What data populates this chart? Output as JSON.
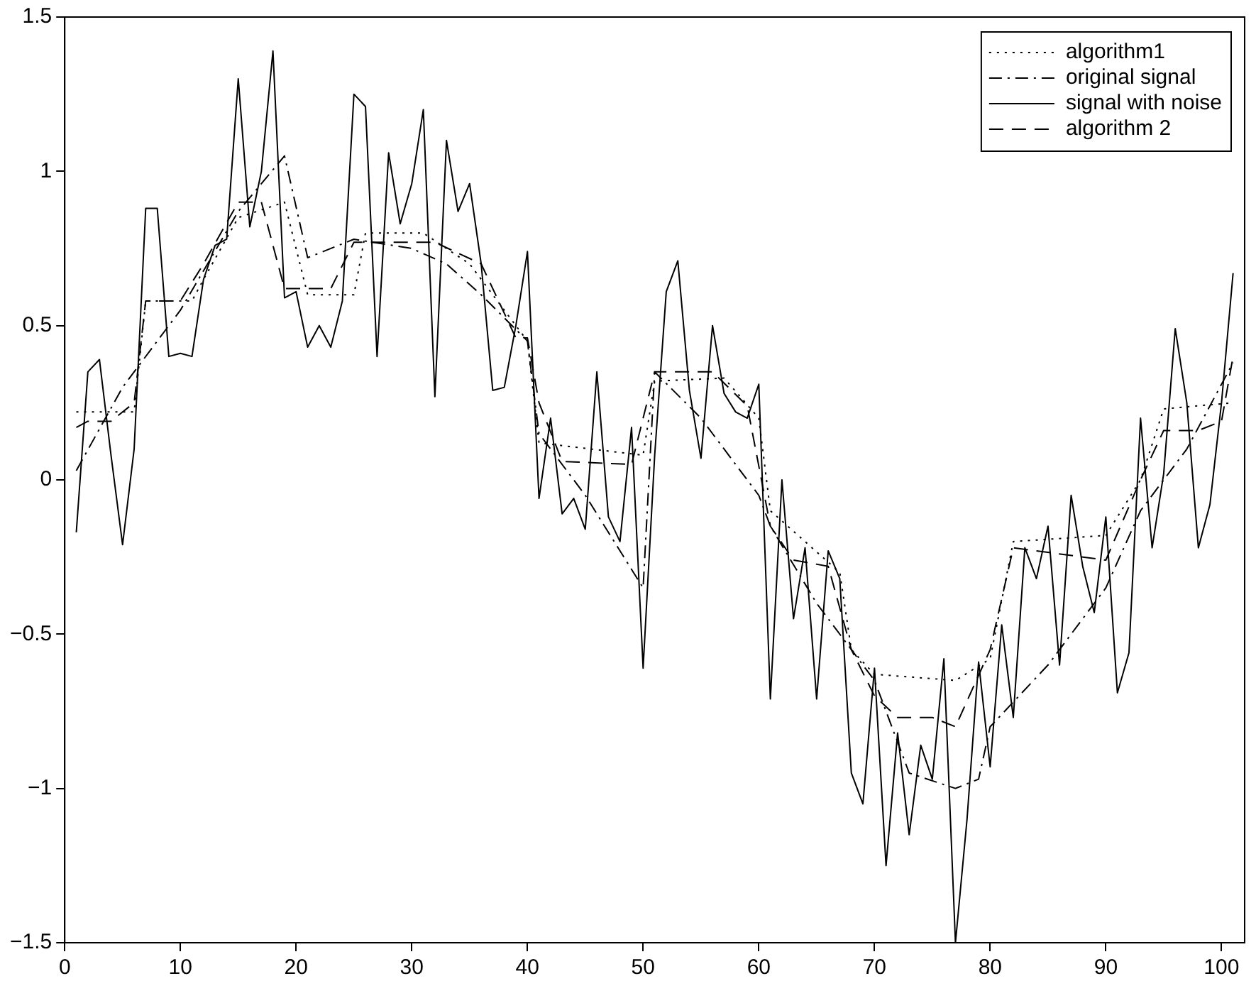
{
  "chart_data": {
    "type": "line",
    "xlim": [
      0,
      102
    ],
    "xticks": [
      0,
      10,
      20,
      30,
      40,
      50,
      60,
      70,
      80,
      90,
      100
    ],
    "ylim": [
      -1.5,
      1.5
    ],
    "yticks": [
      -1.5,
      -1,
      -0.5,
      0,
      0.5,
      1,
      1.5
    ],
    "grid": false,
    "legend": "top right",
    "marker": "none",
    "series": [
      {
        "name": "algorithm1",
        "color": "#000000",
        "line_style": "dotted",
        "x": [
          1,
          6,
          7,
          11,
          12,
          15,
          19,
          21,
          25,
          26,
          31,
          35,
          39,
          40,
          41,
          50,
          51,
          57,
          60,
          61,
          67,
          68,
          70,
          77,
          80,
          82,
          90,
          93,
          95,
          101
        ],
        "values": [
          0.22,
          0.22,
          0.58,
          0.58,
          0.65,
          0.85,
          0.9,
          0.6,
          0.6,
          0.8,
          0.8,
          0.7,
          0.5,
          0.45,
          0.12,
          0.08,
          0.32,
          0.33,
          0.2,
          -0.1,
          -0.3,
          -0.55,
          -0.63,
          -0.65,
          -0.58,
          -0.2,
          -0.18,
          0.0,
          0.23,
          0.25
        ]
      },
      {
        "name": "original signal",
        "color": "#000000",
        "line_style": "dashdot",
        "x": [
          1,
          5,
          10,
          15,
          19,
          21,
          25,
          30,
          33,
          36,
          40,
          41,
          45,
          50,
          51,
          55,
          60,
          61,
          65,
          70,
          73,
          77,
          79,
          80,
          85,
          90,
          93,
          97,
          101
        ],
        "values": [
          0.03,
          0.3,
          0.55,
          0.87,
          1.05,
          0.72,
          0.78,
          0.75,
          0.7,
          0.6,
          0.45,
          0.15,
          -0.05,
          -0.35,
          0.35,
          0.2,
          -0.05,
          -0.15,
          -0.4,
          -0.65,
          -0.95,
          -1.0,
          -0.97,
          -0.8,
          -0.6,
          -0.35,
          -0.1,
          0.1,
          0.38
        ]
      },
      {
        "name": "signal with noise",
        "color": "#000000",
        "line_style": "solid",
        "x": [
          1,
          2,
          3,
          4,
          5,
          6,
          7,
          8,
          9,
          10,
          11,
          12,
          13,
          14,
          15,
          16,
          17,
          18,
          19,
          20,
          21,
          22,
          23,
          24,
          25,
          26,
          27,
          28,
          29,
          30,
          31,
          32,
          33,
          34,
          35,
          36,
          37,
          38,
          39,
          40,
          41,
          42,
          43,
          44,
          45,
          46,
          47,
          48,
          49,
          50,
          51,
          52,
          53,
          54,
          55,
          56,
          57,
          58,
          59,
          60,
          61,
          62,
          63,
          64,
          65,
          66,
          67,
          68,
          69,
          70,
          71,
          72,
          73,
          74,
          75,
          76,
          77,
          78,
          79,
          80,
          81,
          82,
          83,
          84,
          85,
          86,
          87,
          88,
          89,
          90,
          91,
          92,
          93,
          94,
          95,
          96,
          97,
          98,
          99,
          100,
          101
        ],
        "values": [
          -0.17,
          0.35,
          0.39,
          0.08,
          -0.21,
          0.1,
          0.88,
          0.88,
          0.4,
          0.41,
          0.4,
          0.65,
          0.76,
          0.78,
          1.3,
          0.82,
          1.0,
          1.39,
          0.59,
          0.61,
          0.43,
          0.5,
          0.43,
          0.58,
          1.25,
          1.21,
          0.4,
          1.06,
          0.83,
          0.96,
          1.2,
          0.27,
          1.1,
          0.87,
          0.96,
          0.7,
          0.29,
          0.3,
          0.5,
          0.74,
          -0.06,
          0.2,
          -0.11,
          -0.06,
          -0.16,
          0.35,
          -0.12,
          -0.2,
          0.17,
          -0.61,
          0.08,
          0.61,
          0.71,
          0.29,
          0.07,
          0.5,
          0.28,
          0.22,
          0.2,
          0.31,
          -0.71,
          0.0,
          -0.45,
          -0.22,
          -0.71,
          -0.23,
          -0.32,
          -0.95,
          -1.05,
          -0.61,
          -1.25,
          -0.82,
          -1.15,
          -0.86,
          -0.97,
          -0.58,
          -1.5,
          -1.1,
          -0.59,
          -0.93,
          -0.47,
          -0.77,
          -0.22,
          -0.32,
          -0.15,
          -0.6,
          -0.05,
          -0.28,
          -0.43,
          -0.12,
          -0.69,
          -0.56,
          0.2,
          -0.22,
          0.02,
          0.49,
          0.25,
          -0.22,
          -0.08,
          0.25,
          0.67
        ]
      },
      {
        "name": "algorithm 2",
        "color": "#000000",
        "line_style": "dashed",
        "x": [
          1,
          2,
          4,
          6,
          7,
          10,
          12,
          15,
          17,
          19,
          23,
          25,
          32,
          36,
          39,
          40,
          41,
          43,
          49,
          51,
          56,
          59,
          61,
          63,
          66,
          68,
          70,
          72,
          75,
          77,
          80,
          82,
          90,
          93,
          95,
          98,
          100,
          101
        ],
        "values": [
          0.17,
          0.19,
          0.19,
          0.25,
          0.58,
          0.58,
          0.7,
          0.9,
          0.9,
          0.62,
          0.62,
          0.77,
          0.77,
          0.7,
          0.46,
          0.46,
          0.25,
          0.06,
          0.05,
          0.35,
          0.35,
          0.24,
          -0.15,
          -0.26,
          -0.28,
          -0.55,
          -0.7,
          -0.77,
          -0.77,
          -0.8,
          -0.55,
          -0.22,
          -0.26,
          0.0,
          0.16,
          0.16,
          0.19,
          0.4
        ]
      }
    ]
  }
}
